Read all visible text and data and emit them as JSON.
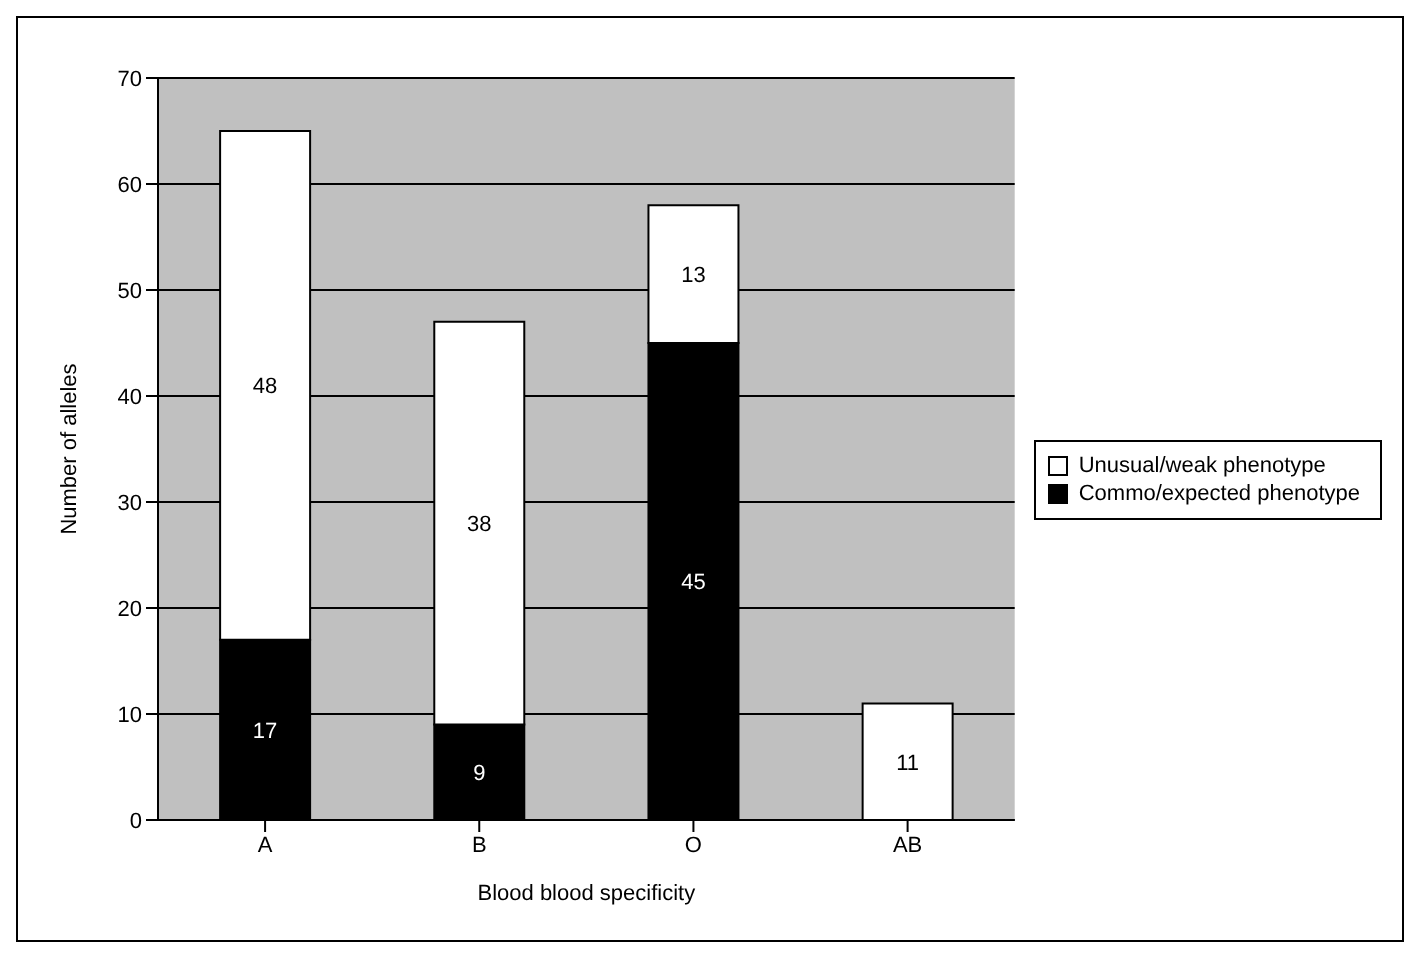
{
  "chart_data": {
    "type": "bar",
    "stacked": true,
    "xlabel": "Blood blood specificity",
    "ylabel": "Number of alleles",
    "categories": [
      "A",
      "B",
      "O",
      "AB"
    ],
    "series": [
      {
        "name": "Commo/expected phenotype",
        "color": "#000000",
        "values": [
          17,
          9,
          45,
          0
        ],
        "value_labels": [
          "17",
          "9",
          "45",
          null
        ]
      },
      {
        "name": "Unusual/weak phenotype",
        "color": "#ffffff",
        "values": [
          48,
          38,
          13,
          11
        ],
        "value_labels": [
          "48",
          "38",
          "13",
          "11"
        ]
      }
    ],
    "ylim": [
      0,
      70
    ],
    "yticks": [
      0,
      10,
      20,
      30,
      40,
      50,
      60,
      70
    ],
    "grid": "y",
    "legend": "right"
  }
}
